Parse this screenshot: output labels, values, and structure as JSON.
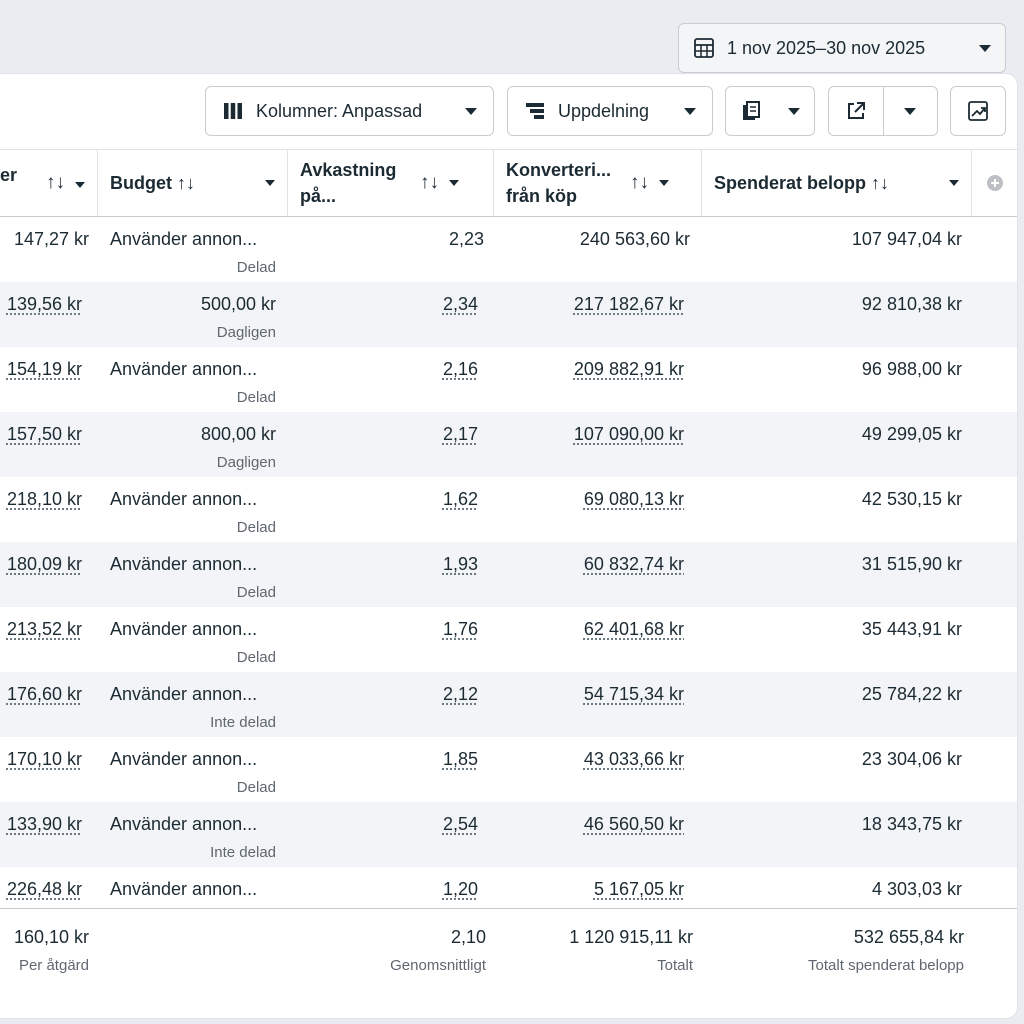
{
  "date_range": {
    "label": "1 nov 2025–30 nov 2025"
  },
  "toolbar": {
    "columns_label": "Kolumner: Anpassad",
    "breakdown_label": "Uppdelning"
  },
  "columns": [
    {
      "label": "er"
    },
    {
      "label": "Budget ↑↓"
    },
    {
      "label": "Avkastning på..."
    },
    {
      "label": "Konverteri... från köp"
    },
    {
      "label": "Spenderat belopp ↑↓"
    }
  ],
  "rows": [
    {
      "cost": "147,27 kr",
      "budget": "Använder annon...",
      "budget_type": "Delad",
      "roas": "2,23",
      "conv": "240 563,60 kr",
      "spent": "107 947,04 kr"
    },
    {
      "cost": "139,56 kr",
      "budget": "500,00 kr",
      "budget_type": "Dagligen",
      "roas": "2,34",
      "conv": "217 182,67 kr",
      "spent": "92 810,38 kr"
    },
    {
      "cost": "154,19 kr",
      "budget": "Använder annon...",
      "budget_type": "Delad",
      "roas": "2,16",
      "conv": "209 882,91 kr",
      "spent": "96 988,00 kr"
    },
    {
      "cost": "157,50 kr",
      "budget": "800,00 kr",
      "budget_type": "Dagligen",
      "roas": "2,17",
      "conv": "107 090,00 kr",
      "spent": "49 299,05 kr"
    },
    {
      "cost": "218,10 kr",
      "budget": "Använder annon...",
      "budget_type": "Delad",
      "roas": "1,62",
      "conv": "69 080,13 kr",
      "spent": "42 530,15 kr"
    },
    {
      "cost": "180,09 kr",
      "budget": "Använder annon...",
      "budget_type": "Delad",
      "roas": "1,93",
      "conv": "60 832,74 kr",
      "spent": "31 515,90 kr"
    },
    {
      "cost": "213,52 kr",
      "budget": "Använder annon...",
      "budget_type": "Delad",
      "roas": "1,76",
      "conv": "62 401,68 kr",
      "spent": "35 443,91 kr"
    },
    {
      "cost": "176,60 kr",
      "budget": "Använder annon...",
      "budget_type": "Inte delad",
      "roas": "2,12",
      "conv": "54 715,34 kr",
      "spent": "25 784,22 kr"
    },
    {
      "cost": "170,10 kr",
      "budget": "Använder annon...",
      "budget_type": "Delad",
      "roas": "1,85",
      "conv": "43 033,66 kr",
      "spent": "23 304,06 kr"
    },
    {
      "cost": "133,90 kr",
      "budget": "Använder annon...",
      "budget_type": "Inte delad",
      "roas": "2,54",
      "conv": "46 560,50 kr",
      "spent": "18 343,75 kr"
    },
    {
      "cost": "226,48 kr",
      "budget": "Använder annon...",
      "budget_type": "",
      "roas": "1,20",
      "conv": "5 167,05 kr",
      "spent": "4 303,03 kr"
    }
  ],
  "totals": {
    "cost": "160,10 kr",
    "cost_label": "Per åtgärd",
    "roas": "2,10",
    "roas_label": "Genomsnittligt",
    "conv": "1 120 915,11 kr",
    "conv_label": "Totalt",
    "spent": "532 655,84 kr",
    "spent_label": "Totalt spenderat belopp"
  }
}
